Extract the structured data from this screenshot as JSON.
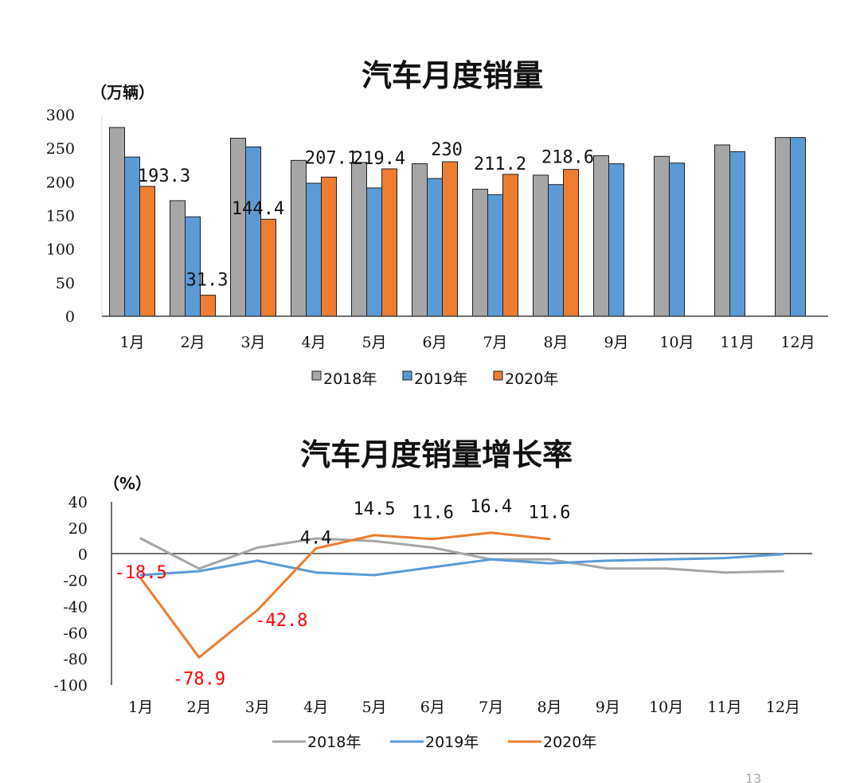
{
  "colors": {
    "s2018_bar": "#a6a6a6",
    "s2019_bar": "#5b9bd5",
    "s2020_bar": "#ed7d31",
    "s2018_line": "#a5a5a5",
    "s2019_line": "#5b9bd5",
    "s2020_line": "#ed7d31",
    "negative_label": "#ff0000"
  },
  "page_number": "13",
  "chart_data": [
    {
      "type": "bar",
      "title": "汽车月度销量",
      "ylabel": "（万辆）",
      "xlabel": "",
      "ylim": [
        0,
        300
      ],
      "yticks": [
        "0",
        "50",
        "100",
        "150",
        "200",
        "250",
        "300"
      ],
      "categories": [
        "1月",
        "2月",
        "3月",
        "4月",
        "5月",
        "6月",
        "7月",
        "8月",
        "9月",
        "10月",
        "11月",
        "12月"
      ],
      "series": [
        {
          "name": "2018年",
          "values": [
            281,
            172,
            265,
            232,
            229,
            227,
            189,
            210,
            239,
            238,
            255,
            266
          ]
        },
        {
          "name": "2019年",
          "values": [
            237,
            148,
            252,
            198,
            191,
            205,
            181,
            196,
            227,
            228,
            245,
            266
          ]
        },
        {
          "name": "2020年",
          "values": [
            193.3,
            31.3,
            144.4,
            207.1,
            219.4,
            230,
            211.2,
            218.6,
            null,
            null,
            null,
            null
          ]
        }
      ],
      "data_labels": [
        "193.3",
        "31.3",
        "144.4",
        "207.1",
        "219.4",
        "230",
        "211.2",
        "218.6"
      ],
      "legend": [
        "2018年",
        "2019年",
        "2020年"
      ]
    },
    {
      "type": "line",
      "title": "汽车月度销量增长率",
      "ylabel": "（%）",
      "xlabel": "",
      "ylim": [
        -100,
        40
      ],
      "yticks": [
        "40",
        "20",
        "0",
        "-20",
        "-40",
        "-60",
        "-80",
        "-100"
      ],
      "categories": [
        "1月",
        "2月",
        "3月",
        "4月",
        "5月",
        "6月",
        "7月",
        "8月",
        "9月",
        "10月",
        "11月",
        "12月"
      ],
      "series": [
        {
          "name": "2018年",
          "values": [
            12,
            -11,
            5,
            12,
            10,
            5,
            -4,
            -4,
            -11,
            -11,
            -14,
            -13
          ]
        },
        {
          "name": "2019年",
          "values": [
            -16,
            -13,
            -5,
            -14,
            -16,
            -10,
            -4,
            -7,
            -5,
            -4,
            -3,
            0
          ]
        },
        {
          "name": "2020年",
          "values": [
            -18.5,
            -78.9,
            -42.8,
            4.4,
            14.5,
            11.6,
            16.4,
            11.6,
            null,
            null,
            null,
            null
          ]
        }
      ],
      "data_labels": [
        "-18.5",
        "-78.9",
        "-42.8",
        "4.4",
        "14.5",
        "11.6",
        "16.4",
        "11.6"
      ],
      "legend": [
        "2018年",
        "2019年",
        "2020年"
      ]
    }
  ]
}
